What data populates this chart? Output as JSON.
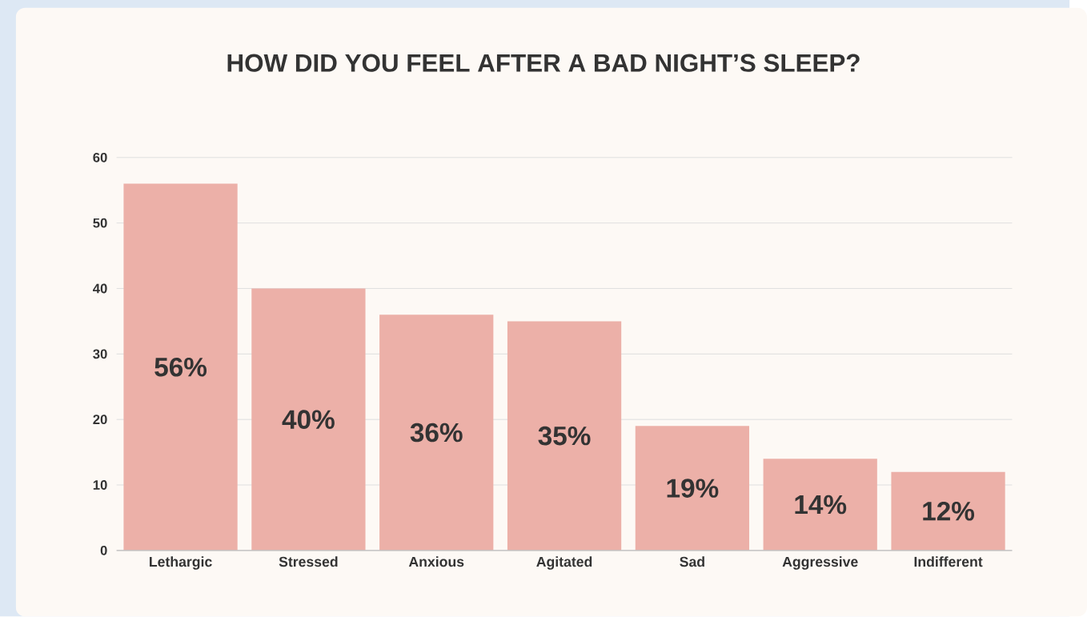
{
  "chart_data": {
    "type": "bar",
    "title": "HOW DID YOU FEEL AFTER A BAD NIGHT’S SLEEP?",
    "categories": [
      "Lethargic",
      "Stressed",
      "Anxious",
      "Agitated",
      "Sad",
      "Aggressive",
      "Indifferent"
    ],
    "values": [
      56,
      40,
      36,
      35,
      19,
      14,
      12
    ],
    "value_labels": [
      "56%",
      "40%",
      "36%",
      "35%",
      "19%",
      "14%",
      "12%"
    ],
    "color": "#ecb0a8",
    "ylim": [
      0,
      60
    ],
    "yticks": [
      0,
      10,
      20,
      30,
      40,
      50,
      60
    ],
    "grid": "y"
  }
}
